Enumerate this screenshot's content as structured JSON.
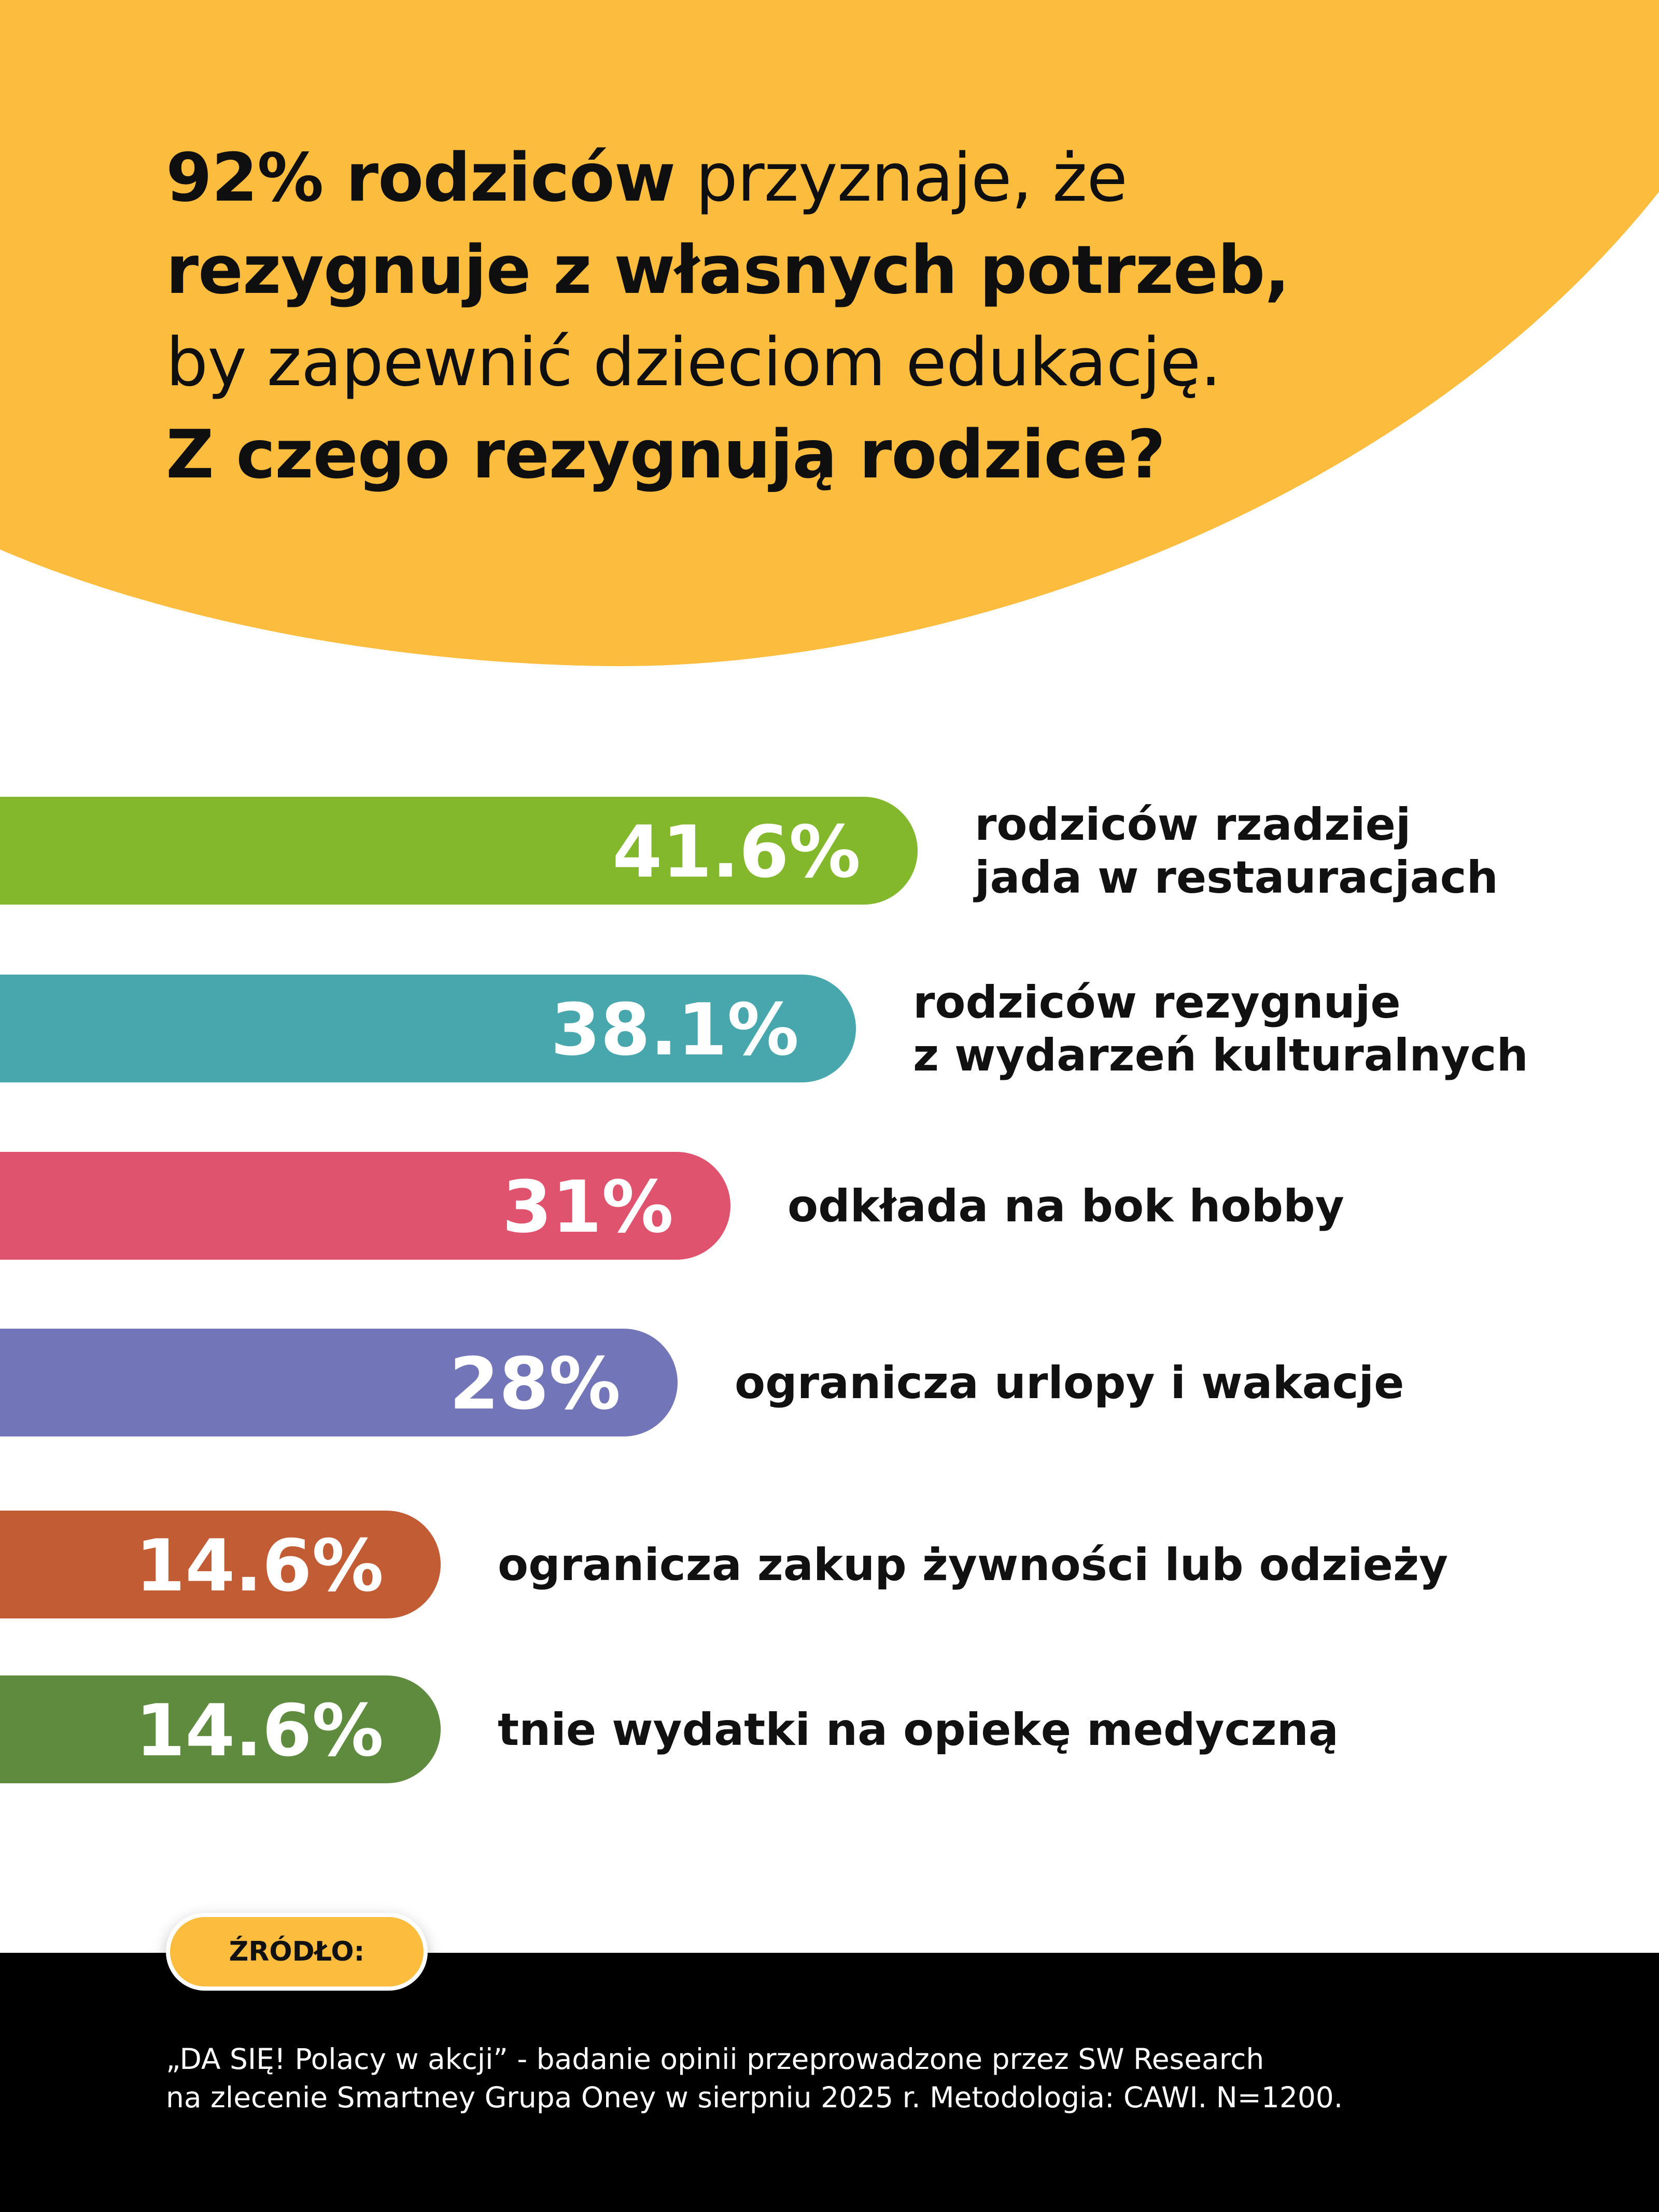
{
  "headline": {
    "bold_1": "92% rodziców",
    "normal_1": " przyznaje, że",
    "bold_2": "rezygnuje z własnych potrzeb,",
    "normal_2": "by zapewnić dzieciom edukację.",
    "bold_3": "Z czego rezygnują rodzice?"
  },
  "colors": {
    "accent_yellow": "#fcbd3f",
    "footer_black": "#000000"
  },
  "chart_data": {
    "type": "bar",
    "orientation": "horizontal",
    "categories": [
      [
        "rodziców rzadziej",
        "jada w restauracjach"
      ],
      [
        "rodziców rezygnuje",
        "z wydarzeń kulturalnych"
      ],
      [
        "odkłada na bok hobby"
      ],
      [
        "ogranicza urlopy i wakacje"
      ],
      [
        "ogranicza zakup żywności lub odzieży"
      ],
      [
        "tnie wydatki na opiekę medyczną"
      ]
    ],
    "values": [
      41.6,
      38.1,
      31,
      28,
      14.6,
      14.6
    ],
    "value_labels": [
      "41.6%",
      "38.1%",
      "31%",
      "28%",
      "14.6%",
      "14.6%"
    ],
    "colors": [
      "#84b82c",
      "#48a7ad",
      "#e0536e",
      "#7276b9",
      "#c25c35",
      "#5f8b3f"
    ],
    "unit": "%"
  },
  "source": {
    "label": "ŹRÓDŁO:",
    "line_1": "„DA SIĘ! Polacy w akcji” - badanie opinii przeprowadzone przez SW Research",
    "line_2": "na zlecenie Smartney Grupa Oney w sierpniu 2025 r. Metodologia: CAWI. N=1200."
  }
}
